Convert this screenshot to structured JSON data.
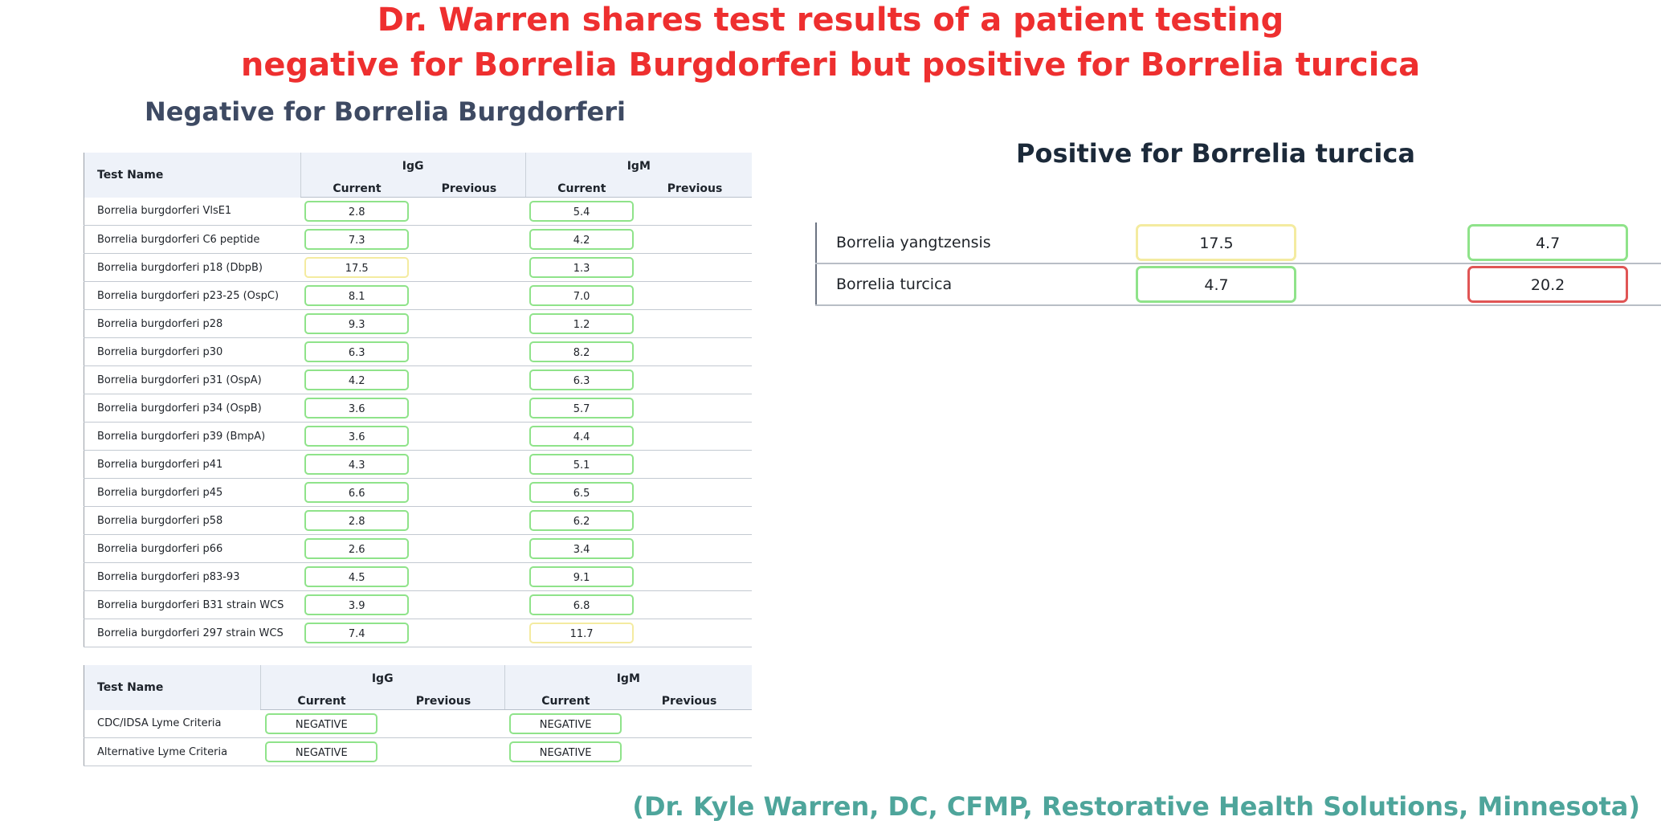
{
  "title": {
    "line1": "Dr. Warren shares test results of a patient testing",
    "line2": "negative for Borrelia Burgdorferi but positive for Borrelia turcica"
  },
  "negative_panel": {
    "heading": "Negative for Borrelia Burgdorferi",
    "headers": {
      "test_name": "Test Name",
      "igg": "IgG",
      "igm": "IgM",
      "current": "Current",
      "previous": "Previous"
    },
    "rows": [
      {
        "name": "Borrelia burgdorferi VlsE1",
        "igg": "2.8",
        "igg_status": "normal",
        "igm": "5.4",
        "igm_status": "normal"
      },
      {
        "name": "Borrelia burgdorferi C6 peptide",
        "igg": "7.3",
        "igg_status": "normal",
        "igm": "4.2",
        "igm_status": "normal"
      },
      {
        "name": "Borrelia burgdorferi p18 (DbpB)",
        "igg": "17.5",
        "igg_status": "warn",
        "igm": "1.3",
        "igm_status": "normal"
      },
      {
        "name": "Borrelia burgdorferi p23-25 (OspC)",
        "igg": "8.1",
        "igg_status": "normal",
        "igm": "7.0",
        "igm_status": "normal"
      },
      {
        "name": "Borrelia burgdorferi p28",
        "igg": "9.3",
        "igg_status": "normal",
        "igm": "1.2",
        "igm_status": "normal"
      },
      {
        "name": "Borrelia burgdorferi p30",
        "igg": "6.3",
        "igg_status": "normal",
        "igm": "8.2",
        "igm_status": "normal"
      },
      {
        "name": "Borrelia burgdorferi p31 (OspA)",
        "igg": "4.2",
        "igg_status": "normal",
        "igm": "6.3",
        "igm_status": "normal"
      },
      {
        "name": "Borrelia burgdorferi p34 (OspB)",
        "igg": "3.6",
        "igg_status": "normal",
        "igm": "5.7",
        "igm_status": "normal"
      },
      {
        "name": "Borrelia burgdorferi p39 (BmpA)",
        "igg": "3.6",
        "igg_status": "normal",
        "igm": "4.4",
        "igm_status": "normal"
      },
      {
        "name": "Borrelia burgdorferi p41",
        "igg": "4.3",
        "igg_status": "normal",
        "igm": "5.1",
        "igm_status": "normal"
      },
      {
        "name": "Borrelia burgdorferi p45",
        "igg": "6.6",
        "igg_status": "normal",
        "igm": "6.5",
        "igm_status": "normal"
      },
      {
        "name": "Borrelia burgdorferi p58",
        "igg": "2.8",
        "igg_status": "normal",
        "igm": "6.2",
        "igm_status": "normal"
      },
      {
        "name": "Borrelia burgdorferi p66",
        "igg": "2.6",
        "igg_status": "normal",
        "igm": "3.4",
        "igm_status": "normal"
      },
      {
        "name": "Borrelia burgdorferi p83-93",
        "igg": "4.5",
        "igg_status": "normal",
        "igm": "9.1",
        "igm_status": "normal"
      },
      {
        "name": "Borrelia burgdorferi B31 strain WCS",
        "igg": "3.9",
        "igg_status": "normal",
        "igm": "6.8",
        "igm_status": "normal"
      },
      {
        "name": "Borrelia burgdorferi 297 strain WCS",
        "igg": "7.4",
        "igg_status": "normal",
        "igm": "11.7",
        "igm_status": "warn"
      }
    ],
    "criteria_rows": [
      {
        "name": "CDC/IDSA Lyme Criteria",
        "igg": "NEGATIVE",
        "igg_status": "normal",
        "igm": "NEGATIVE",
        "igm_status": "normal"
      },
      {
        "name": "Alternative Lyme Criteria",
        "igg": "NEGATIVE",
        "igg_status": "normal",
        "igm": "NEGATIVE",
        "igm_status": "normal"
      }
    ]
  },
  "positive_panel": {
    "heading": "Positive for Borrelia turcica",
    "rows": [
      {
        "name": "Borrelia yangtzensis",
        "igg": "17.5",
        "igg_status": "warn",
        "igm": "4.7",
        "igm_status": "normal"
      },
      {
        "name": "Borrelia turcica",
        "igg": "4.7",
        "igg_status": "normal",
        "igm": "20.2",
        "igm_status": "high"
      }
    ]
  },
  "credit": "(Dr. Kyle Warren, DC, CFMP, Restorative Health Solutions, Minnesota)",
  "colors": {
    "title": "#ee2f2f",
    "heading": "#3e4a63",
    "credit": "#4ea59b",
    "normal_border": "#8fe38a",
    "warn_border": "#f4eba0",
    "high_border": "#e05555"
  }
}
